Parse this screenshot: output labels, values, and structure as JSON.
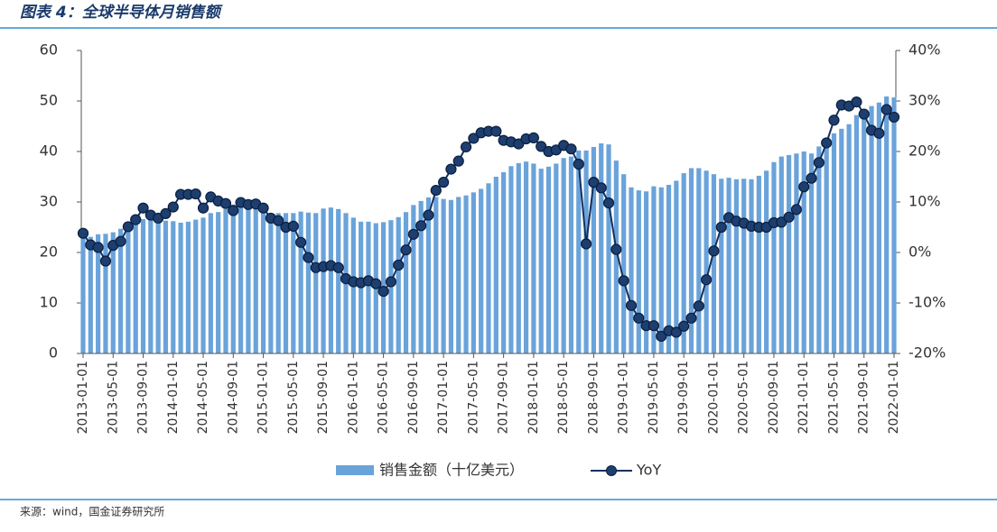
{
  "title": "图表 4：全球半导体月销售额",
  "source": "来源：wind，国金证券研究所",
  "chart_data": {
    "type": "bar-line",
    "categories": [
      "2013-01-01",
      null,
      null,
      null,
      "2013-05-01",
      null,
      null,
      null,
      "2013-09-01",
      null,
      null,
      null,
      "2014-01-01",
      null,
      null,
      null,
      "2014-05-01",
      null,
      null,
      null,
      "2014-09-01",
      null,
      null,
      null,
      "2015-01-01",
      null,
      null,
      null,
      "2015-05-01",
      null,
      null,
      null,
      "2015-09-01",
      null,
      null,
      null,
      "2016-01-01",
      null,
      null,
      null,
      "2016-05-01",
      null,
      null,
      null,
      "2016-09-01",
      null,
      null,
      null,
      "2017-01-01",
      null,
      null,
      null,
      "2017-05-01",
      null,
      null,
      null,
      "2017-09-01",
      null,
      null,
      null,
      "2018-01-01",
      null,
      null,
      null,
      "2018-05-01",
      null,
      null,
      null,
      "2018-09-01",
      null,
      null,
      null,
      "2019-01-01",
      null,
      null,
      null,
      "2019-05-01",
      null,
      null,
      null,
      "2019-09-01",
      null,
      null,
      null,
      "2020-01-01",
      null,
      null,
      null,
      "2020-05-01",
      null,
      null,
      null,
      "2020-09-01",
      null,
      null,
      null,
      "2021-01-01",
      null,
      null,
      null,
      "2021-05-01",
      null,
      null,
      null,
      "2021-09-01",
      null,
      null,
      null,
      "2022-01-01"
    ],
    "series": [
      {
        "name": "销售金额（十亿美元）",
        "type": "bar",
        "color": "#6aa3da",
        "values": [
          23.6,
          23.1,
          23.6,
          23.7,
          24.0,
          24.7,
          25.1,
          25.9,
          26.6,
          26.9,
          26.8,
          26.3,
          26.2,
          25.9,
          26.1,
          26.5,
          26.9,
          27.8,
          28.0,
          28.6,
          29.5,
          29.5,
          29.3,
          29.0,
          27.8,
          27.5,
          27.8,
          27.8,
          27.8,
          28.1,
          27.9,
          27.8,
          28.7,
          28.9,
          28.6,
          27.8,
          26.9,
          26.1,
          26.1,
          25.8,
          26.0,
          26.4,
          27.0,
          28.0,
          29.4,
          30.2,
          30.9,
          31.0,
          30.6,
          30.4,
          31.0,
          31.3,
          31.9,
          32.6,
          33.7,
          35.0,
          35.9,
          37.1,
          37.7,
          38.0,
          37.6,
          36.6,
          37.0,
          37.6,
          38.7,
          39.0,
          40.2,
          40.2,
          40.9,
          41.6,
          41.4,
          38.2,
          35.5,
          32.9,
          32.3,
          32.1,
          33.1,
          32.9,
          33.4,
          34.2,
          35.7,
          36.7,
          36.7,
          36.2,
          35.5,
          34.6,
          34.8,
          34.5,
          34.6,
          34.5,
          35.2,
          36.2,
          37.9,
          39.0,
          39.3,
          39.6,
          40.0,
          39.6,
          41.0,
          42.0,
          43.6,
          44.5,
          45.4,
          47.2,
          48.2,
          49.0,
          49.7,
          50.9,
          50.7
        ]
      },
      {
        "name": "YoY",
        "type": "line",
        "axis": "y2",
        "color": "#13315f",
        "values": [
          3.8,
          1.5,
          1.0,
          -1.7,
          1.4,
          2.2,
          5.1,
          6.5,
          8.8,
          7.4,
          6.8,
          7.7,
          9.0,
          11.5,
          11.5,
          11.6,
          8.8,
          11.0,
          10.2,
          9.7,
          8.3,
          9.9,
          9.5,
          9.6,
          8.8,
          6.8,
          6.3,
          5.0,
          5.2,
          2.0,
          -1.0,
          -3.0,
          -2.8,
          -2.6,
          -3.0,
          -5.2,
          -5.8,
          -6.0,
          -5.6,
          -6.2,
          -7.7,
          -5.8,
          -2.5,
          0.5,
          3.6,
          5.3,
          7.4,
          12.3,
          13.9,
          16.5,
          18.1,
          20.9,
          22.6,
          23.7,
          24.0,
          24.0,
          22.2,
          21.9,
          21.5,
          22.5,
          22.7,
          21.0,
          20.0,
          20.3,
          21.2,
          20.5,
          17.5,
          1.7,
          13.9,
          12.8,
          9.8,
          0.6,
          -5.6,
          -10.5,
          -13.0,
          -14.5,
          -14.5,
          -16.6,
          -15.5,
          -15.8,
          -14.6,
          -13.0,
          -10.6,
          -5.4,
          0.3,
          5.0,
          6.9,
          6.2,
          5.8,
          5.2,
          5.0,
          5.0,
          5.9,
          6.0,
          7.0,
          8.5,
          13.0,
          14.7,
          17.8,
          21.7,
          26.2,
          29.2,
          29.0,
          29.8,
          27.4,
          24.2,
          23.6,
          28.3,
          26.8
        ]
      }
    ],
    "ylim": [
      0,
      60
    ],
    "yticks": [
      0,
      10,
      20,
      30,
      40,
      50,
      60
    ],
    "y2lim": [
      -20,
      40
    ],
    "y2ticks": [
      {
        "value": -20,
        "label": "-20%"
      },
      {
        "value": -10,
        "label": "-10%"
      },
      {
        "value": 0,
        "label": "0%"
      },
      {
        "value": 10,
        "label": "10%"
      },
      {
        "value": 20,
        "label": "20%"
      },
      {
        "value": 30,
        "label": "30%"
      },
      {
        "value": 40,
        "label": "40%"
      }
    ],
    "legend": "bottom"
  }
}
